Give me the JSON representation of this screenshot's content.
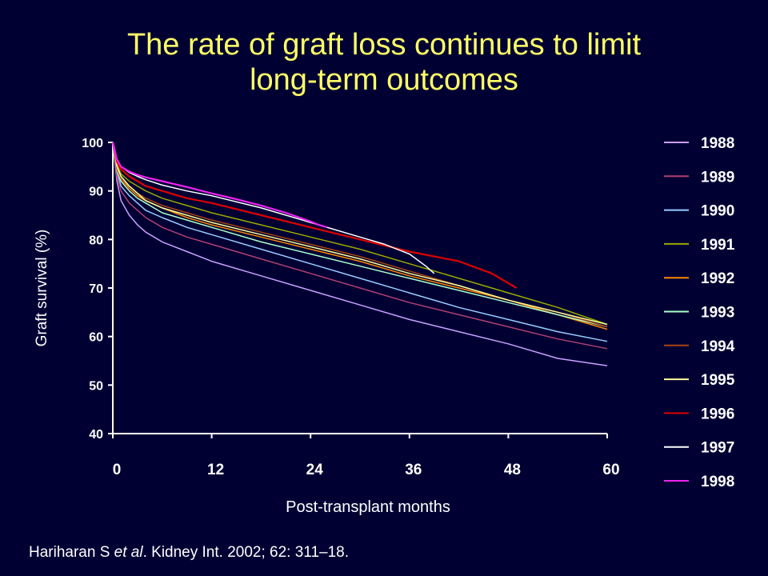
{
  "slide": {
    "title_line1": "The rate of graft loss continues to limit",
    "title_line2": "long-term outcomes",
    "citation_pre": "Hariharan S ",
    "citation_em": "et al",
    "citation_post": ". Kidney Int. 2002; 62: 311–18."
  },
  "chart_data": {
    "type": "line",
    "xlabel": "Post-transplant months",
    "ylabel": "Graft survival (%)",
    "xlim": [
      0,
      60
    ],
    "ylim": [
      40,
      100
    ],
    "xticks": [
      0,
      12,
      24,
      36,
      48,
      60
    ],
    "yticks": [
      40,
      50,
      60,
      70,
      80,
      90,
      100
    ],
    "grid": false,
    "legend_position": "right",
    "series": [
      {
        "name": "1988",
        "color": "#c9a0ff",
        "x": [
          0,
          0.5,
          1,
          2,
          3,
          4,
          6,
          9,
          12,
          18,
          24,
          30,
          36,
          42,
          48,
          54,
          60
        ],
        "y": [
          100,
          92,
          88,
          85,
          83,
          81.5,
          79.5,
          77.5,
          75.5,
          72.5,
          69.5,
          66.5,
          63.5,
          61,
          58.5,
          55.5,
          54
        ]
      },
      {
        "name": "1989",
        "color": "#b04070",
        "x": [
          0,
          0.5,
          1,
          2,
          3,
          4,
          6,
          9,
          12,
          18,
          24,
          30,
          36,
          42,
          48,
          54,
          60
        ],
        "y": [
          100,
          93,
          90,
          87.5,
          86,
          84.5,
          82.5,
          80.5,
          79,
          76,
          73,
          70,
          67,
          64.5,
          62,
          59.5,
          57.5
        ]
      },
      {
        "name": "1990",
        "color": "#99ccff",
        "x": [
          0,
          0.5,
          1,
          2,
          3,
          4,
          6,
          9,
          12,
          18,
          24,
          30,
          36,
          42,
          48,
          54,
          60
        ],
        "y": [
          100,
          94,
          91,
          89,
          87.5,
          86,
          84.5,
          82.5,
          81,
          78,
          75,
          72,
          69,
          66,
          63.5,
          61,
          59
        ]
      },
      {
        "name": "1991",
        "color": "#99aa00",
        "x": [
          0,
          0.5,
          1,
          2,
          3,
          4,
          6,
          9,
          12,
          18,
          24,
          30,
          36,
          42,
          48,
          54,
          60
        ],
        "y": [
          100,
          95.5,
          93.5,
          92,
          91,
          90,
          88.5,
          87,
          85.5,
          83,
          80.5,
          78,
          75,
          72,
          69,
          66,
          62.5
        ]
      },
      {
        "name": "1992",
        "color": "#ff8800",
        "x": [
          0,
          0.5,
          1,
          2,
          3,
          4,
          6,
          9,
          12,
          18,
          24,
          30,
          36,
          42,
          48,
          54,
          60
        ],
        "y": [
          100,
          95,
          92.5,
          90.5,
          89,
          88,
          86.5,
          84.5,
          83,
          80.5,
          78,
          75.5,
          72.5,
          70,
          67.5,
          64.5,
          61.5
        ]
      },
      {
        "name": "1993",
        "color": "#aaffcc",
        "x": [
          0,
          0.5,
          1,
          2,
          3,
          4,
          6,
          9,
          12,
          18,
          24,
          30,
          36,
          42,
          48,
          54,
          60
        ],
        "y": [
          100,
          94.5,
          92,
          90,
          88.5,
          87.5,
          85.5,
          84,
          82.5,
          79.5,
          77,
          74.5,
          72,
          69.5,
          67,
          64.5,
          62
        ]
      },
      {
        "name": "1994",
        "color": "#aa4411",
        "x": [
          0,
          0.5,
          1,
          2,
          3,
          4,
          6,
          9,
          12,
          18,
          24,
          30,
          36,
          42,
          48,
          54,
          60
        ],
        "y": [
          100,
          94.5,
          92.5,
          91,
          89.5,
          88.5,
          87,
          85.5,
          84,
          81.5,
          79,
          76.5,
          73.5,
          70.5,
          67.5,
          65,
          62
        ]
      },
      {
        "name": "1995",
        "color": "#ffff99",
        "x": [
          0,
          0.5,
          1,
          2,
          3,
          4,
          6,
          9,
          12,
          18,
          24,
          30,
          36,
          42,
          48,
          54,
          60
        ],
        "y": [
          100,
          95,
          93,
          91,
          89.5,
          88,
          86.5,
          85,
          83.5,
          81,
          78.5,
          76,
          73,
          70.5,
          67.5,
          65,
          62.5
        ]
      },
      {
        "name": "1996",
        "color": "#dd0000",
        "x": [
          0,
          0.5,
          1,
          2,
          3,
          4,
          6,
          9,
          12,
          18,
          24,
          30,
          36,
          42,
          46,
          48,
          49
        ],
        "y": [
          100,
          96,
          94.5,
          93,
          92,
          91,
          90,
          88.5,
          87.5,
          85,
          82.5,
          80,
          77.5,
          75.5,
          73,
          71,
          70
        ]
      },
      {
        "name": "1997",
        "color": "#ffffff",
        "x": [
          0,
          0.5,
          1,
          2,
          3,
          4,
          6,
          9,
          12,
          18,
          24,
          30,
          33,
          36,
          38,
          39
        ],
        "y": [
          100,
          96.5,
          95,
          93.8,
          93,
          92.3,
          91.2,
          90,
          89,
          86.5,
          83.5,
          80.5,
          79,
          77,
          74.5,
          73
        ]
      },
      {
        "name": "1998",
        "color": "#ee22ee",
        "x": [
          0,
          0.5,
          1,
          2,
          3,
          4,
          6,
          9,
          12,
          15,
          18,
          21,
          24,
          25,
          26
        ],
        "y": [
          100,
          96.5,
          95,
          94,
          93.3,
          92.8,
          92,
          90.8,
          89.5,
          88.3,
          87,
          85.5,
          83.7,
          83,
          82.5
        ]
      }
    ]
  }
}
